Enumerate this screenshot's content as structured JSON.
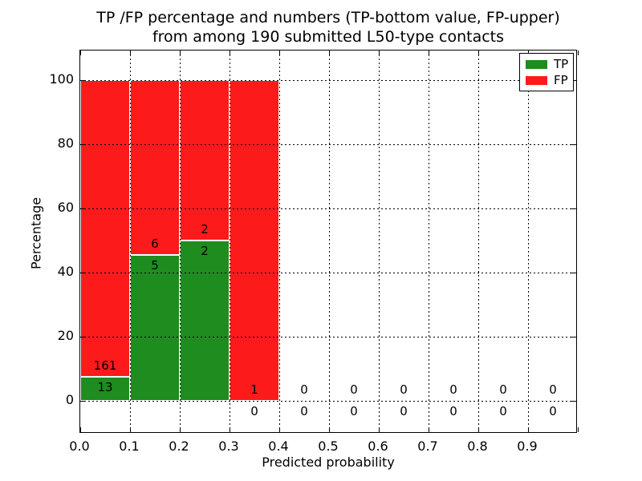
{
  "chart_data": {
    "type": "bar",
    "stacked": true,
    "normalized_to_percent": true,
    "title_line1": "TP /FP percentage and numbers (TP-bottom value, FP-upper)",
    "title_line2": "from among 190 submitted L50-type contacts",
    "xlabel": "Predicted probability",
    "ylabel": "Percentage",
    "x_tick_labels": [
      "0.0",
      "0.1",
      "0.2",
      "0.3",
      "0.4",
      "0.5",
      "0.6",
      "0.7",
      "0.8",
      "0.9"
    ],
    "y_ticks": [
      0,
      20,
      40,
      60,
      80,
      100
    ],
    "y_tick_labels": [
      "0",
      "20",
      "40",
      "60",
      "80",
      "100"
    ],
    "xlim": [
      0.0,
      1.0
    ],
    "ylim": [
      -10.25,
      109.25
    ],
    "bin_width": 0.1,
    "bin_starts": [
      0.0,
      0.1,
      0.2,
      0.3,
      0.4,
      0.5,
      0.6,
      0.7,
      0.8,
      0.9
    ],
    "series": [
      {
        "name": "TP",
        "color": "#1e8c1e",
        "values": [
          13,
          5,
          2,
          0,
          0,
          0,
          0,
          0,
          0,
          0
        ]
      },
      {
        "name": "FP",
        "color": "#fc1a1a",
        "values": [
          161,
          6,
          2,
          1,
          0,
          0,
          0,
          0,
          0,
          0
        ]
      }
    ],
    "legend": [
      {
        "label": "TP",
        "color": "#1e8c1e"
      },
      {
        "label": "FP",
        "color": "#fc1a1a"
      }
    ],
    "legend_position": "upper right",
    "grid": {
      "enabled": true,
      "style": "dotted",
      "color": "#000000",
      "x_step": 0.1,
      "y_step": 20
    },
    "annotation_note": "FP count printed above TP-bar top, TP count printed below it, per bin"
  }
}
